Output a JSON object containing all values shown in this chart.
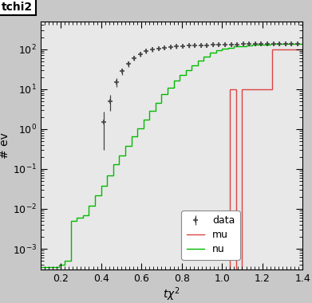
{
  "title": "tchi2",
  "xlabel": "tχ²",
  "ylabel": "# ev",
  "xlim": [
    0.1,
    1.4
  ],
  "ylim": [
    0.0003,
    500.0
  ],
  "fig_bg_color": "#c8c8c8",
  "plot_bg_color": "#e8e8e8",
  "nu_bins": [
    0.1,
    0.13,
    0.16,
    0.19,
    0.22,
    0.25,
    0.28,
    0.31,
    0.34,
    0.37,
    0.4,
    0.43,
    0.46,
    0.49,
    0.52,
    0.55,
    0.58,
    0.61,
    0.64,
    0.67,
    0.7,
    0.73,
    0.76,
    0.79,
    0.82,
    0.85,
    0.88,
    0.91,
    0.94,
    0.97,
    1.0,
    1.03,
    1.06,
    1.09,
    1.12,
    1.15,
    1.18,
    1.21,
    1.24,
    1.27,
    1.3,
    1.33,
    1.36,
    1.4
  ],
  "nu_vals": [
    0.00035,
    0.00035,
    0.00035,
    0.0004,
    0.0005,
    0.005,
    0.006,
    0.007,
    0.012,
    0.022,
    0.038,
    0.07,
    0.13,
    0.22,
    0.38,
    0.65,
    1.05,
    1.7,
    2.8,
    4.5,
    7.5,
    11,
    16,
    23,
    30,
    40,
    52,
    66,
    80,
    92,
    103,
    110,
    116,
    120,
    124,
    127,
    129,
    131,
    133,
    134,
    135,
    136,
    137
  ],
  "mu_bin_edges": [
    0.1,
    1.04,
    1.07,
    1.1,
    1.19,
    1.25,
    1.4
  ],
  "mu_heights": [
    0,
    10,
    0,
    10,
    10,
    100,
    0
  ],
  "data_x": [
    0.415,
    0.445,
    0.475,
    0.505,
    0.535,
    0.565,
    0.595,
    0.625,
    0.655,
    0.685,
    0.715,
    0.745,
    0.775,
    0.805,
    0.835,
    0.865,
    0.895,
    0.925,
    0.955,
    0.985,
    1.015,
    1.045,
    1.075,
    1.105,
    1.135,
    1.165,
    1.195,
    1.225,
    1.255,
    1.285,
    1.315,
    1.345,
    1.375
  ],
  "data_y": [
    1.5,
    5.0,
    15,
    28,
    43,
    60,
    75,
    88,
    97,
    104,
    109,
    113,
    116,
    119,
    121,
    123,
    125,
    126,
    128,
    129,
    130,
    131,
    132,
    133,
    134,
    134,
    135,
    136,
    136,
    137,
    137,
    138,
    138
  ],
  "data_yerr": [
    1.2,
    2.2,
    3.9,
    5.3,
    6.6,
    7.7,
    8.7,
    9.4,
    9.8,
    10.2,
    10.4,
    10.6,
    10.8,
    10.9,
    11.0,
    11.1,
    11.2,
    11.2,
    11.3,
    11.4,
    11.4,
    11.4,
    11.5,
    11.5,
    11.6,
    11.6,
    11.6,
    11.7,
    11.7,
    11.7,
    11.7,
    11.7,
    11.7
  ],
  "nu_color": "#00bb00",
  "mu_color": "#dd4444",
  "data_color": "#444444",
  "title_fontsize": 10,
  "axis_label_fontsize": 10,
  "tick_label_fontsize": 9,
  "legend_fontsize": 9
}
